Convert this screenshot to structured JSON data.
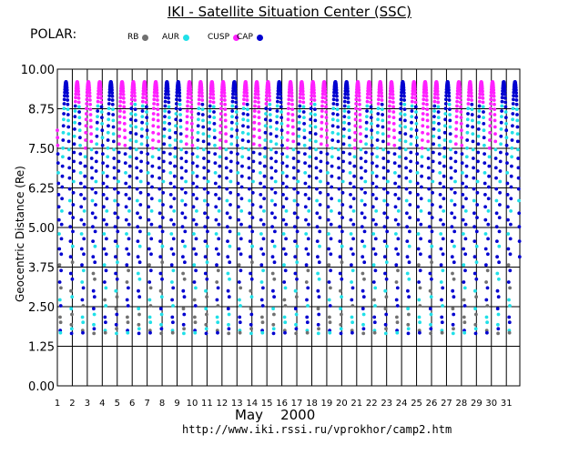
{
  "header": {
    "title": "IKI - Satellite Situation Center (SSC)",
    "satellite": "POLAR:"
  },
  "legend": [
    {
      "label": "RB",
      "color": "#707070"
    },
    {
      "label": "AUR",
      "color": "#20e0e8"
    },
    {
      "label": "CUSP",
      "color": "#ff20ff"
    },
    {
      "label": "CAP",
      "color": "#0000d0"
    }
  ],
  "footer": "http://www.iki.rssi.ru/vprokhor/camp2.htm",
  "chart_data": {
    "type": "scatter",
    "title": "IKI - Satellite Situation Center (SSC)",
    "ylabel": "Geocentric Distance (Re)",
    "xlabel": "May    2000",
    "ylim": [
      0,
      10
    ],
    "xlim": [
      1,
      31.9
    ],
    "yticks": [
      "0.00",
      "1.25",
      "2.50",
      "3.75",
      "5.00",
      "6.25",
      "7.50",
      "8.75",
      "10.00"
    ],
    "xticks": [
      "1",
      "2",
      "3",
      "4",
      "5",
      "6",
      "7",
      "8",
      "9",
      "10",
      "11",
      "12",
      "13",
      "14",
      "15",
      "16",
      "17",
      "18",
      "19",
      "20",
      "21",
      "22",
      "23",
      "24",
      "25",
      "26",
      "27",
      "28",
      "29",
      "30",
      "31"
    ],
    "grid": true,
    "orbit_period_days": 0.75,
    "perigee_re": 1.65,
    "apogee_re": 9.6,
    "series": [
      {
        "name": "RB",
        "color": "#707070",
        "range_re": [
          1.65,
          4.0
        ]
      },
      {
        "name": "AUR",
        "color": "#20e0e8",
        "range_re": [
          1.8,
          9.2
        ]
      },
      {
        "name": "CUSP",
        "color": "#ff20ff",
        "range_re": [
          7.5,
          9.6
        ]
      },
      {
        "name": "CAP",
        "color": "#0000d0",
        "range_re": [
          1.8,
          9.6
        ]
      }
    ]
  }
}
